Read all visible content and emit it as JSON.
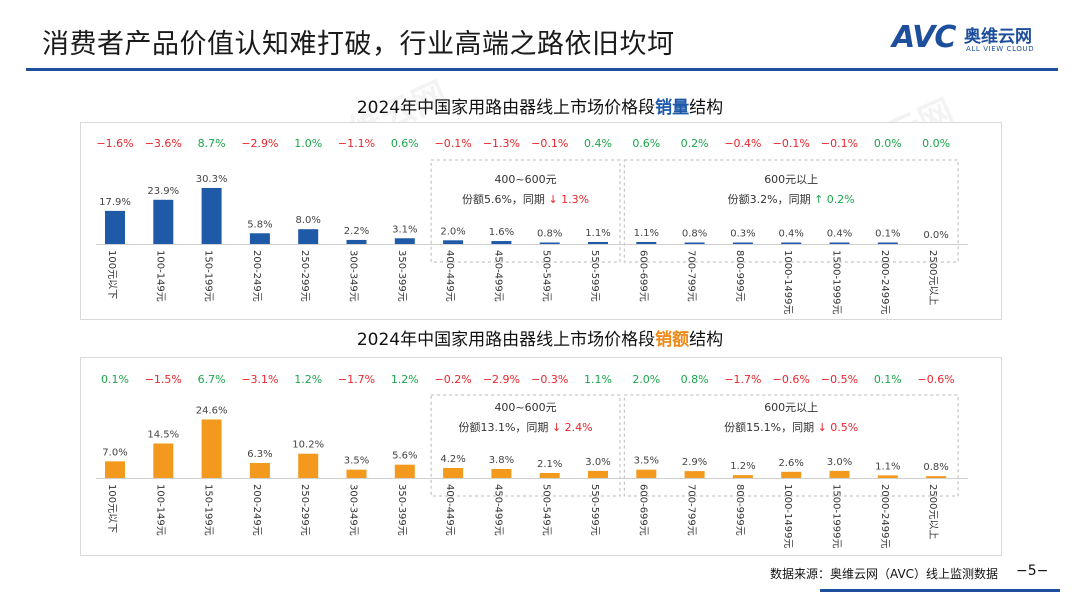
{
  "header": {
    "title": "消费者产品价值认知难打破，行业高端之路依旧坎坷"
  },
  "logo": {
    "mark": "AVC",
    "cn": "奥维云网",
    "en": "ALL VIEW CLOUD"
  },
  "colors": {
    "brand": "#1d4f9c",
    "blue_bar": "#1e5aa8",
    "orange_bar": "#f39a1e",
    "positive": "#1aa64a",
    "negative": "#e8262d"
  },
  "footer": {
    "source": "数据来源：奥维云网（AVC）线上监测数据",
    "page": "−5−"
  },
  "chart_data": [
    {
      "type": "bar",
      "title_prefix": "2024年中国家用路由器线上市场价格段",
      "title_highlight": "销量",
      "title_suffix": "结构",
      "categories": [
        "100元以下",
        "100-149元",
        "150-199元",
        "200-249元",
        "250-299元",
        "300-349元",
        "350-399元",
        "400-449元",
        "450-499元",
        "500-549元",
        "550-599元",
        "600-699元",
        "700-799元",
        "800-999元",
        "1000-1499元",
        "1500-1999元",
        "2000-2499元",
        "2500元以上"
      ],
      "values": [
        17.9,
        23.9,
        30.3,
        5.8,
        8.0,
        2.2,
        3.1,
        2.0,
        1.6,
        0.8,
        1.1,
        1.1,
        0.8,
        0.3,
        0.4,
        0.4,
        0.1,
        0.0
      ],
      "value_labels": [
        "17.9%",
        "23.9%",
        "30.3%",
        "5.8%",
        "8.0%",
        "2.2%",
        "3.1%",
        "2.0%",
        "1.6%",
        "0.8%",
        "1.1%",
        "1.1%",
        "0.8%",
        "0.3%",
        "0.4%",
        "0.4%",
        "0.1%",
        "0.0%"
      ],
      "changes": [
        "−1.6%",
        "−3.6%",
        "8.7%",
        "−2.9%",
        "1.0%",
        "−1.1%",
        "0.6%",
        "−0.1%",
        "−1.3%",
        "−0.1%",
        "0.4%",
        "0.6%",
        "0.2%",
        "−0.4%",
        "−0.1%",
        "−0.1%",
        "0.0%",
        "0.0%"
      ],
      "change_signs": [
        "neg",
        "neg",
        "pos",
        "neg",
        "pos",
        "neg",
        "pos",
        "neg",
        "neg",
        "neg",
        "pos",
        "pos",
        "pos",
        "neg",
        "neg",
        "neg",
        "pos",
        "pos"
      ],
      "groups": [
        {
          "label": "400~600元",
          "share_text": "份额5.6%，同期",
          "arrow": "↓",
          "delta": "1.3%",
          "sign": "neg",
          "from": 7,
          "to": 10
        },
        {
          "label": "600元以上",
          "share_text": "份额3.2%，同期",
          "arrow": "↑",
          "delta": "0.2%",
          "sign": "pos",
          "from": 11,
          "to": 17
        }
      ],
      "bar_color": "#1e5aa8"
    },
    {
      "type": "bar",
      "title_prefix": "2024年中国家用路由器线上市场价格段",
      "title_highlight": "销额",
      "title_suffix": "结构",
      "categories": [
        "100元以下",
        "100-149元",
        "150-199元",
        "200-249元",
        "250-299元",
        "300-349元",
        "350-399元",
        "400-449元",
        "450-499元",
        "500-549元",
        "550-599元",
        "600-699元",
        "700-799元",
        "800-999元",
        "1000-1499元",
        "1500-1999元",
        "2000-2499元",
        "2500元以上"
      ],
      "values": [
        7.0,
        14.5,
        24.6,
        6.3,
        10.2,
        3.5,
        5.6,
        4.2,
        3.8,
        2.1,
        3.0,
        3.5,
        2.9,
        1.2,
        2.6,
        3.0,
        1.1,
        0.8
      ],
      "value_labels": [
        "7.0%",
        "14.5%",
        "24.6%",
        "6.3%",
        "10.2%",
        "3.5%",
        "5.6%",
        "4.2%",
        "3.8%",
        "2.1%",
        "3.0%",
        "3.5%",
        "2.9%",
        "1.2%",
        "2.6%",
        "3.0%",
        "1.1%",
        "0.8%"
      ],
      "changes": [
        "0.1%",
        "−1.5%",
        "6.7%",
        "−3.1%",
        "1.2%",
        "−1.7%",
        "1.2%",
        "−0.2%",
        "−2.9%",
        "−0.3%",
        "1.1%",
        "2.0%",
        "0.8%",
        "−1.7%",
        "−0.6%",
        "−0.5%",
        "0.1%",
        "−0.6%"
      ],
      "change_signs": [
        "pos",
        "neg",
        "pos",
        "neg",
        "pos",
        "neg",
        "pos",
        "neg",
        "neg",
        "neg",
        "pos",
        "pos",
        "pos",
        "neg",
        "neg",
        "neg",
        "pos",
        "neg"
      ],
      "groups": [
        {
          "label": "400~600元",
          "share_text": "份额13.1%，同期",
          "arrow": "↓",
          "delta": "2.4%",
          "sign": "neg",
          "from": 7,
          "to": 10
        },
        {
          "label": "600元以上",
          "share_text": "份额15.1%，同期",
          "arrow": "↓",
          "delta": "0.5%",
          "sign": "neg",
          "from": 11,
          "to": 17
        }
      ],
      "bar_color": "#f39a1e"
    }
  ]
}
